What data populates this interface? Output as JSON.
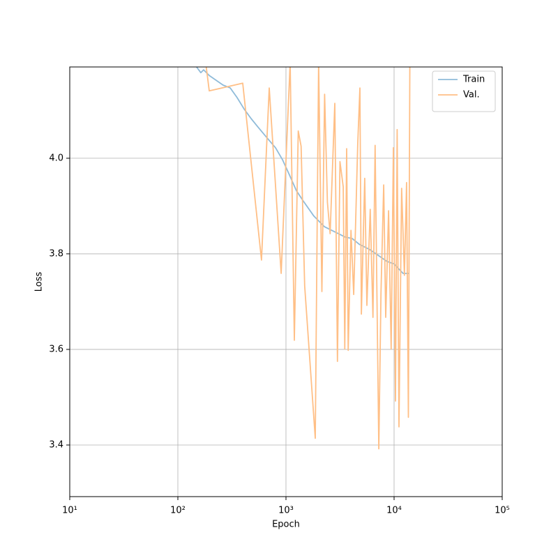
{
  "chart_data": {
    "type": "line",
    "xlabel": "Epoch",
    "ylabel": "Loss",
    "xscale": "log",
    "grid": true,
    "legend": "upper right",
    "xlim": [
      10,
      100000
    ],
    "xticks": [
      {
        "value": 10,
        "label": "10¹"
      },
      {
        "value": 100,
        "label": "10²"
      },
      {
        "value": 1000,
        "label": "10³"
      },
      {
        "value": 10000,
        "label": "10⁴"
      },
      {
        "value": 100000,
        "label": "10⁵"
      }
    ],
    "ylim": [
      3.292,
      4.191
    ],
    "yticks": [
      3.4,
      3.6,
      3.8,
      {
        "value": 4,
        "label": "4.0"
      }
    ],
    "series": [
      {
        "name": "Train",
        "color": "#8fbbd9",
        "x": [
          149,
          163,
          173,
          195,
          262,
          305,
          353,
          410,
          476,
          552,
          690,
          800,
          928,
          1077,
          1250,
          1449,
          1811,
          2263,
          2830,
          3535,
          4100,
          4755,
          5943,
          7430,
          8610,
          10000,
          10770,
          12130,
          13650
        ],
        "values": [
          4.191,
          4.179,
          4.185,
          4.173,
          4.153,
          4.147,
          4.127,
          4.103,
          4.083,
          4.065,
          4.039,
          4.022,
          3.997,
          3.965,
          3.932,
          3.91,
          3.879,
          3.857,
          3.846,
          3.835,
          3.832,
          3.82,
          3.809,
          3.794,
          3.784,
          3.779,
          3.771,
          3.759,
          3.759
        ]
      },
      {
        "name": "Val.",
        "color": "#ffbf86",
        "x": [
          181,
          195,
          398,
          594,
          700,
          902,
          1094,
          1195,
          1299,
          1380,
          1488,
          1866,
          2003,
          2148,
          2277,
          2415,
          2560,
          2830,
          2993,
          3159,
          3385,
          3500,
          3640,
          3762,
          3990,
          4230,
          4610,
          4830,
          4980,
          5350,
          5600,
          6020,
          6380,
          6680,
          7220,
          7560,
          8010,
          8370,
          8890,
          9400,
          9850,
          10300,
          10680,
          11090,
          11740,
          12460,
          13040,
          13560,
          14000
        ],
        "values": [
          4.2,
          4.141,
          4.157,
          3.787,
          4.147,
          3.759,
          4.2,
          3.619,
          4.057,
          4.025,
          3.733,
          3.414,
          4.2,
          3.721,
          4.134,
          3.908,
          3.842,
          4.115,
          3.575,
          3.993,
          3.94,
          3.601,
          4.02,
          3.598,
          3.849,
          3.715,
          4.031,
          4.147,
          3.674,
          3.958,
          3.692,
          3.893,
          3.667,
          4.027,
          3.392,
          3.718,
          3.944,
          3.667,
          3.89,
          3.601,
          4.022,
          3.492,
          4.06,
          3.438,
          3.937,
          3.755,
          3.949,
          3.458,
          4.2
        ]
      }
    ]
  }
}
